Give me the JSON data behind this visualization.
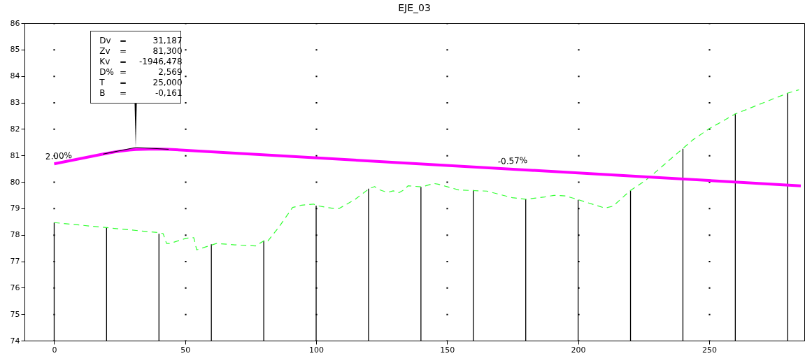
{
  "chart_data": {
    "type": "line",
    "title": "EJE_03",
    "xlim": [
      -10,
      285
    ],
    "xticks": [
      0,
      50,
      100,
      150,
      200,
      250
    ],
    "ylim": [
      74,
      86
    ],
    "yticks": [
      74,
      75,
      76,
      77,
      78,
      79,
      80,
      81,
      82,
      83,
      84,
      85,
      86
    ],
    "grid": "x",
    "series": [
      {
        "type": "bar",
        "color": "#000000",
        "x": [
          0,
          20,
          40,
          60,
          80,
          100,
          120,
          140,
          160,
          180,
          200,
          220,
          240,
          260,
          280
        ],
        "values": [
          78.46,
          78.28,
          78.04,
          77.64,
          77.78,
          79.1,
          79.74,
          79.81,
          79.69,
          79.34,
          79.32,
          79.67,
          81.25,
          82.58,
          83.35
        ]
      },
      {
        "color": "#33ff33",
        "line_style": "dashed",
        "x": [
          0,
          40.0,
          41.6,
          42.9,
          44.2,
          50.4,
          53.3,
          54.4,
          61.9,
          68.9,
          76.9,
          80.2,
          81.3,
          85.7,
          91.0,
          94.5,
          99.0,
          100.3,
          106.9,
          108.7,
          114.9,
          120.2,
          122.3,
          124.5,
          127.2,
          129.4,
          131.6,
          133.4,
          135.1,
          140.4,
          144.9,
          146.6,
          150.2,
          154.6,
          159.9,
          165.2,
          174.9,
          180.2,
          187.2,
          190.8,
          195.2,
          200.2,
          210.2,
          213.3,
          219.9,
          225.2,
          227.8,
          240.2,
          243.7,
          249.9,
          260.1,
          279.9,
          284.3
        ],
        "values": [
          78.46,
          78.08,
          78.04,
          77.67,
          77.67,
          77.87,
          77.89,
          77.43,
          77.67,
          77.62,
          77.58,
          77.78,
          77.73,
          78.28,
          79.03,
          79.12,
          79.16,
          79.1,
          78.99,
          78.99,
          79.34,
          79.74,
          79.82,
          79.69,
          79.6,
          79.66,
          79.59,
          79.69,
          79.85,
          79.81,
          79.94,
          79.91,
          79.81,
          79.69,
          79.67,
          79.65,
          79.4,
          79.34,
          79.43,
          79.49,
          79.47,
          79.32,
          79.01,
          79.08,
          79.67,
          80.02,
          80.22,
          81.28,
          81.58,
          82.0,
          82.57,
          83.35,
          83.48
        ]
      },
      {
        "color": "#ff00ff",
        "x": [
          0,
          18.69,
          23.69,
          28.69,
          31.19,
          33.69,
          38.69,
          43.69,
          285
        ],
        "values": [
          80.68,
          81.05,
          81.14,
          81.2,
          81.22,
          81.23,
          81.24,
          81.23,
          79.85
        ]
      },
      {
        "color": "#000000",
        "x": [
          18.69,
          31.19,
          43.69
        ],
        "values": [
          81.05,
          81.3,
          81.23
        ]
      }
    ],
    "annotations": [
      "Dv = 31,187",
      "Zv = 81,300",
      "Kv = -1946,478",
      "D% = 2,569",
      "T = 25,000",
      "B = -0,161",
      {
        "text": "2.00%",
        "x": 0,
        "y": 80.68
      },
      {
        "text": "-0.57%",
        "x": 172.7,
        "y": 80.49
      }
    ]
  }
}
